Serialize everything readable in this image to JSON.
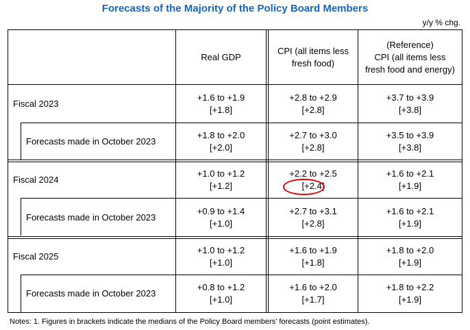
{
  "title": "Forecasts of the Majority of the Policy Board Members",
  "unit": "y/y % chg.",
  "headers": {
    "gdp": "Real GDP",
    "cpi_line1": "CPI (all items less",
    "cpi_line2": "fresh food)",
    "ref_line1": "(Reference)",
    "ref_line2": "CPI (all items less",
    "ref_line3": "fresh food and energy)"
  },
  "rows": [
    {
      "label": "Fiscal 2023",
      "gdp_range": "+1.6 to +1.9",
      "gdp_median": "[+1.8]",
      "cpi_range": "+2.8 to +2.9",
      "cpi_median": "[+2.8]",
      "ref_range": "+3.7 to +3.9",
      "ref_median": "[+3.8]"
    },
    {
      "label": "Forecasts made in October 2023",
      "gdp_range": "+1.8 to +2.0",
      "gdp_median": "[+2.0]",
      "cpi_range": "+2.7 to +3.0",
      "cpi_median": "[+2.8]",
      "ref_range": "+3.5 to +3.9",
      "ref_median": "[+3.8]"
    },
    {
      "label": "Fiscal 2024",
      "gdp_range": "+1.0 to +1.2",
      "gdp_median": "[+1.2]",
      "cpi_range": "+2.2 to +2.5",
      "cpi_median": "[+2.4]",
      "ref_range": "+1.6 to +2.1",
      "ref_median": "[+1.9]"
    },
    {
      "label": "Forecasts made in October 2023",
      "gdp_range": "+0.9 to +1.4",
      "gdp_median": "[+1.0]",
      "cpi_range": "+2.7 to +3.1",
      "cpi_median": "[+2.8]",
      "ref_range": "+1.6 to +2.1",
      "ref_median": "[+1.9]"
    },
    {
      "label": "Fiscal 2025",
      "gdp_range": "+1.0 to +1.2",
      "gdp_median": "[+1.0]",
      "cpi_range": "+1.6 to +1.9",
      "cpi_median": "[+1.8]",
      "ref_range": "+1.8 to +2.0",
      "ref_median": "[+1.9]"
    },
    {
      "label": "Forecasts made in October 2023",
      "gdp_range": "+0.8 to +1.2",
      "gdp_median": "[+1.0]",
      "cpi_range": "+1.6 to +2.0",
      "cpi_median": "[+1.7]",
      "ref_range": "+1.8 to +2.2",
      "ref_median": "[+1.9]"
    }
  ],
  "note": "Notes: 1. Figures in brackets indicate the medians of the Policy Board members' forecasts (point estimates).",
  "colors": {
    "title": "#1565c0",
    "highlight_circle": "#e00000"
  }
}
